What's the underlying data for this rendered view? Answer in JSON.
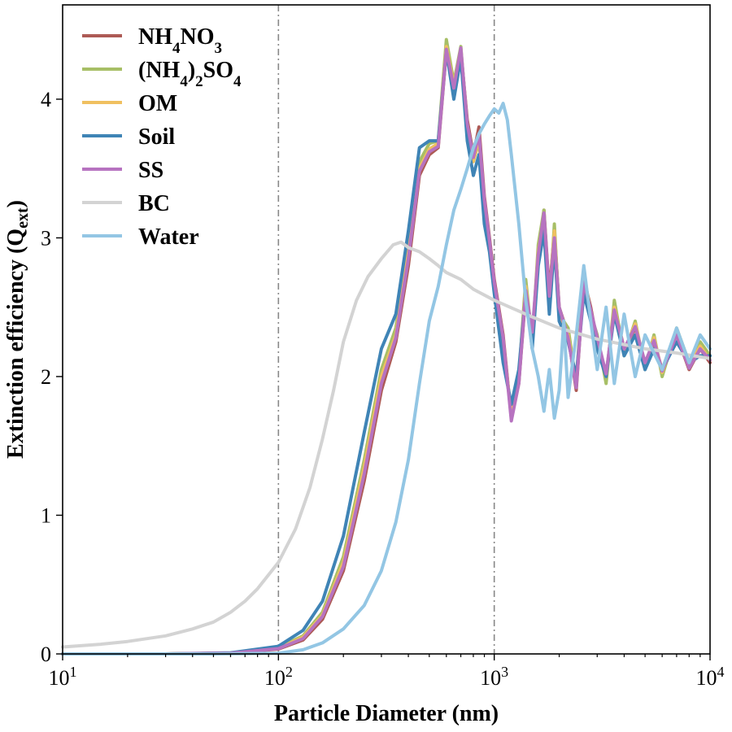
{
  "chart_data": {
    "type": "line",
    "title": "",
    "xlabel": "Particle Diameter (nm)",
    "ylabel": "Extinction efficiency (Q",
    "ylabel_sub": "ext",
    "ylabel_close": ")",
    "xscale": "log",
    "xlim": [
      10,
      10000
    ],
    "ylim": [
      0,
      4.68
    ],
    "grid": false,
    "legend_position": "top-left",
    "x_ticks": [
      {
        "value": 10,
        "base": "10",
        "exp": "1"
      },
      {
        "value": 100,
        "base": "10",
        "exp": "2"
      },
      {
        "value": 1000,
        "base": "10",
        "exp": "3"
      },
      {
        "value": 10000,
        "base": "10",
        "exp": "4"
      }
    ],
    "y_ticks": [
      {
        "value": 0,
        "label": "0"
      },
      {
        "value": 1,
        "label": "1"
      },
      {
        "value": 2,
        "label": "2"
      },
      {
        "value": 3,
        "label": "3"
      },
      {
        "value": 4,
        "label": "4"
      }
    ],
    "reference_lines_x": [
      100,
      1000
    ],
    "series": [
      {
        "name": "NH4NO3",
        "legend": [
          {
            "t": "NH"
          },
          {
            "t": "4",
            "sub": true
          },
          {
            "t": "NO"
          },
          {
            "t": "3",
            "sub": true
          }
        ],
        "color": "#ad5a55",
        "x": [
          10,
          30,
          60,
          100,
          130,
          160,
          200,
          250,
          300,
          350,
          400,
          450,
          500,
          550,
          600,
          650,
          700,
          750,
          800,
          850,
          900,
          950,
          1000,
          1100,
          1200,
          1300,
          1400,
          1500,
          1600,
          1700,
          1800,
          1900,
          2000,
          2200,
          2400,
          2600,
          2800,
          3000,
          3300,
          3600,
          4000,
          4500,
          5000,
          5500,
          6000,
          7000,
          8000,
          9000,
          10000
        ],
        "y": [
          0.0,
          0.0,
          0.005,
          0.035,
          0.1,
          0.25,
          0.6,
          1.25,
          1.9,
          2.25,
          2.8,
          3.45,
          3.6,
          3.65,
          4.35,
          4.1,
          4.35,
          3.85,
          3.6,
          3.8,
          3.3,
          3.0,
          2.7,
          2.3,
          1.7,
          1.95,
          2.6,
          2.3,
          2.85,
          3.2,
          2.6,
          3.05,
          2.5,
          2.3,
          1.9,
          2.7,
          2.5,
          2.25,
          2.0,
          2.5,
          2.2,
          2.35,
          2.1,
          2.25,
          2.05,
          2.3,
          2.05,
          2.2,
          2.1
        ]
      },
      {
        "name": "(NH4)2SO4",
        "legend": [
          {
            "t": "(NH"
          },
          {
            "t": "4",
            "sub": true
          },
          {
            "t": ")"
          },
          {
            "t": "2",
            "sub": true
          },
          {
            "t": "SO"
          },
          {
            "t": "4",
            "sub": true
          }
        ],
        "color": "#a7bf66",
        "x": [
          10,
          30,
          60,
          100,
          130,
          160,
          200,
          250,
          300,
          350,
          400,
          450,
          500,
          550,
          600,
          650,
          700,
          750,
          800,
          850,
          900,
          950,
          1000,
          1100,
          1200,
          1300,
          1400,
          1500,
          1600,
          1700,
          1800,
          1900,
          2000,
          2200,
          2400,
          2600,
          2800,
          3000,
          3300,
          3600,
          4000,
          4500,
          5000,
          5500,
          6000,
          7000,
          8000,
          9000,
          10000
        ],
        "y": [
          0.0,
          0.0,
          0.006,
          0.045,
          0.13,
          0.3,
          0.7,
          1.4,
          2.05,
          2.35,
          2.95,
          3.55,
          3.68,
          3.7,
          4.43,
          4.12,
          4.38,
          3.8,
          3.55,
          3.7,
          3.2,
          2.95,
          2.65,
          2.2,
          1.75,
          2.0,
          2.7,
          2.25,
          2.95,
          3.2,
          2.5,
          3.1,
          2.45,
          2.35,
          1.95,
          2.75,
          2.45,
          2.3,
          1.95,
          2.55,
          2.15,
          2.4,
          2.05,
          2.3,
          2.0,
          2.35,
          2.1,
          2.25,
          2.15
        ]
      },
      {
        "name": "OM",
        "legend": [
          {
            "t": "OM"
          }
        ],
        "color": "#f0c060",
        "x": [
          10,
          30,
          60,
          100,
          130,
          160,
          200,
          250,
          300,
          350,
          400,
          450,
          500,
          550,
          600,
          650,
          700,
          750,
          800,
          850,
          900,
          950,
          1000,
          1100,
          1200,
          1300,
          1400,
          1500,
          1600,
          1700,
          1800,
          1900,
          2000,
          2200,
          2400,
          2600,
          2800,
          3000,
          3300,
          3600,
          4000,
          4500,
          5000,
          5500,
          6000,
          7000,
          8000,
          9000,
          10000
        ],
        "y": [
          0.0,
          0.0,
          0.006,
          0.04,
          0.12,
          0.28,
          0.66,
          1.35,
          2.0,
          2.3,
          2.9,
          3.5,
          3.64,
          3.68,
          4.38,
          4.1,
          4.36,
          3.8,
          3.55,
          3.72,
          3.25,
          2.95,
          2.65,
          2.25,
          1.72,
          1.98,
          2.65,
          2.28,
          2.9,
          3.15,
          2.55,
          3.05,
          2.45,
          2.3,
          1.95,
          2.7,
          2.45,
          2.28,
          2.0,
          2.5,
          2.18,
          2.38,
          2.08,
          2.28,
          2.03,
          2.32,
          2.08,
          2.22,
          2.12
        ]
      },
      {
        "name": "Soil",
        "legend": [
          {
            "t": "Soil"
          }
        ],
        "color": "#3f84b6",
        "x": [
          10,
          30,
          60,
          100,
          130,
          160,
          200,
          250,
          300,
          350,
          400,
          450,
          500,
          550,
          600,
          650,
          700,
          750,
          800,
          850,
          900,
          950,
          1000,
          1100,
          1200,
          1300,
          1400,
          1500,
          1600,
          1700,
          1800,
          1900,
          2000,
          2200,
          2400,
          2600,
          2800,
          3000,
          3300,
          3600,
          4000,
          4500,
          5000,
          5500,
          6000,
          7000,
          8000,
          9000,
          10000
        ],
        "y": [
          0.0,
          0.0,
          0.008,
          0.055,
          0.17,
          0.38,
          0.85,
          1.6,
          2.2,
          2.45,
          3.05,
          3.65,
          3.7,
          3.7,
          4.35,
          4.0,
          4.3,
          3.7,
          3.45,
          3.6,
          3.1,
          2.9,
          2.6,
          2.1,
          1.8,
          2.05,
          2.6,
          2.2,
          2.8,
          3.05,
          2.45,
          2.95,
          2.4,
          2.25,
          2.0,
          2.6,
          2.4,
          2.2,
          2.0,
          2.45,
          2.15,
          2.3,
          2.05,
          2.2,
          2.05,
          2.25,
          2.1,
          2.15,
          2.15
        ]
      },
      {
        "name": "SS",
        "legend": [
          {
            "t": "SS"
          }
        ],
        "color": "#b773c0",
        "x": [
          10,
          30,
          60,
          100,
          130,
          160,
          200,
          250,
          300,
          350,
          400,
          450,
          500,
          550,
          600,
          650,
          700,
          750,
          800,
          850,
          900,
          950,
          1000,
          1100,
          1200,
          1300,
          1400,
          1500,
          1600,
          1700,
          1800,
          1900,
          2000,
          2200,
          2400,
          2600,
          2800,
          3000,
          3300,
          3600,
          4000,
          4500,
          5000,
          5500,
          6000,
          7000,
          8000,
          9000,
          10000
        ],
        "y": [
          0.0,
          0.0,
          0.005,
          0.038,
          0.11,
          0.27,
          0.63,
          1.3,
          1.95,
          2.28,
          2.85,
          3.48,
          3.62,
          3.66,
          4.36,
          4.08,
          4.37,
          3.82,
          3.58,
          3.75,
          3.28,
          2.98,
          2.68,
          2.28,
          1.68,
          1.95,
          2.62,
          2.32,
          2.88,
          3.18,
          2.58,
          3.0,
          2.5,
          2.28,
          1.92,
          2.68,
          2.48,
          2.28,
          2.02,
          2.48,
          2.2,
          2.36,
          2.1,
          2.26,
          2.04,
          2.3,
          2.06,
          2.2,
          2.12
        ]
      },
      {
        "name": "BC",
        "legend": [
          {
            "t": "BC"
          }
        ],
        "color": "#d3d3d3",
        "x": [
          10,
          15,
          20,
          30,
          40,
          50,
          60,
          70,
          80,
          90,
          100,
          120,
          140,
          160,
          180,
          200,
          230,
          260,
          300,
          340,
          370,
          400,
          450,
          500,
          550,
          600,
          700,
          800,
          1000,
          1500,
          2000,
          3000,
          5000,
          7000,
          10000
        ],
        "y": [
          0.05,
          0.07,
          0.09,
          0.13,
          0.18,
          0.23,
          0.3,
          0.38,
          0.47,
          0.57,
          0.66,
          0.9,
          1.2,
          1.55,
          1.9,
          2.25,
          2.55,
          2.72,
          2.85,
          2.95,
          2.97,
          2.93,
          2.9,
          2.85,
          2.8,
          2.75,
          2.7,
          2.63,
          2.55,
          2.43,
          2.35,
          2.27,
          2.2,
          2.17,
          2.13
        ]
      },
      {
        "name": "Water",
        "legend": [
          {
            "t": "Water"
          }
        ],
        "color": "#93c6e4",
        "x": [
          10,
          50,
          100,
          130,
          160,
          200,
          250,
          300,
          350,
          400,
          450,
          500,
          550,
          600,
          650,
          700,
          750,
          800,
          850,
          900,
          950,
          1000,
          1050,
          1100,
          1150,
          1200,
          1300,
          1400,
          1500,
          1600,
          1700,
          1800,
          1900,
          2000,
          2100,
          2200,
          2400,
          2600,
          2800,
          3000,
          3300,
          3600,
          4000,
          4500,
          5000,
          6000,
          7000,
          8000,
          9000,
          10000
        ],
        "y": [
          0.0,
          0.0,
          0.005,
          0.03,
          0.08,
          0.18,
          0.35,
          0.6,
          0.95,
          1.4,
          1.95,
          2.4,
          2.65,
          2.95,
          3.2,
          3.35,
          3.5,
          3.65,
          3.75,
          3.82,
          3.88,
          3.93,
          3.9,
          3.97,
          3.85,
          3.6,
          3.1,
          2.55,
          2.2,
          2.0,
          1.75,
          2.05,
          1.7,
          1.9,
          2.4,
          1.85,
          2.3,
          2.8,
          2.4,
          2.05,
          2.5,
          1.95,
          2.45,
          2.0,
          2.3,
          2.05,
          2.35,
          2.1,
          2.3,
          2.2
        ]
      }
    ]
  }
}
